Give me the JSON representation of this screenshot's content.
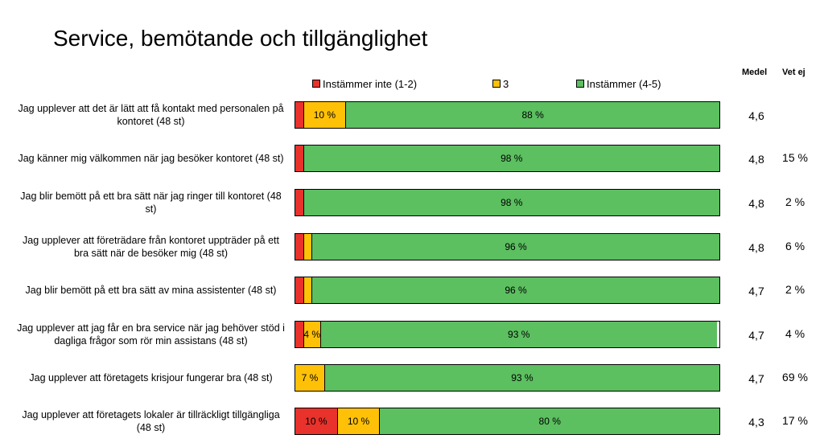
{
  "title": "Service, bemötande och tillgänglighet",
  "legend": [
    {
      "label": "Instämmer inte (1-2)",
      "color": "#e8322b"
    },
    {
      "label": "3",
      "color": "#ffc107"
    },
    {
      "label": "Instämmer (4-5)",
      "color": "#5cbf60"
    }
  ],
  "columns": {
    "medel": "Medel",
    "vet_ej": "Vet ej"
  },
  "chart_data": {
    "type": "bar",
    "orientation": "horizontal",
    "stacked": true,
    "title": "Service, bemötande och tillgänglighet",
    "xlim": [
      0,
      100
    ],
    "legend_position": "top",
    "categories": [
      "Jag upplever att det är lätt att få kontakt med personalen på kontoret (48 st)",
      "Jag känner mig välkommen när jag besöker kontoret (48 st)",
      "Jag blir bemött på ett bra sätt när jag ringer till kontoret (48 st)",
      "Jag upplever att företrädare från kontoret uppträder på ett bra sätt när de besöker mig (48 st)",
      "Jag blir bemött på ett bra sätt av mina assistenter (48 st)",
      "Jag upplever att jag får en bra service när jag behöver stöd i dagliga frågor som rör min assistans (48 st)",
      "Jag upplever att företagets krisjour fungerar bra (48 st)",
      "Jag upplever att företagets lokaler är tillräckligt tillgängliga (48 st)"
    ],
    "series": [
      {
        "name": "Instämmer inte (1-2)",
        "color": "#e8322b",
        "values": [
          2,
          2,
          2,
          2,
          2,
          2,
          0,
          10
        ],
        "labels": [
          "",
          "",
          "",
          "",
          "",
          "",
          "",
          "10 %"
        ]
      },
      {
        "name": "3",
        "color": "#ffc107",
        "values": [
          10,
          0,
          0,
          2,
          2,
          4,
          7,
          10
        ],
        "labels": [
          "10 %",
          "",
          "",
          "",
          "",
          "4 %",
          "7 %",
          "10 %"
        ]
      },
      {
        "name": "Instämmer (4-5)",
        "color": "#5cbf60",
        "values": [
          88,
          98,
          98,
          96,
          96,
          93,
          93,
          80
        ],
        "labels": [
          "88 %",
          "98 %",
          "98 %",
          "96 %",
          "96 %",
          "93 %",
          "93 %",
          "80 %"
        ]
      }
    ],
    "medel": [
      "4,6",
      "4,8",
      "4,8",
      "4,8",
      "4,7",
      "4,7",
      "4,7",
      "4,3"
    ],
    "vet_ej": [
      "",
      "15 %",
      "2 %",
      "6 %",
      "2 %",
      "4 %",
      "69 %",
      "17 %"
    ]
  }
}
